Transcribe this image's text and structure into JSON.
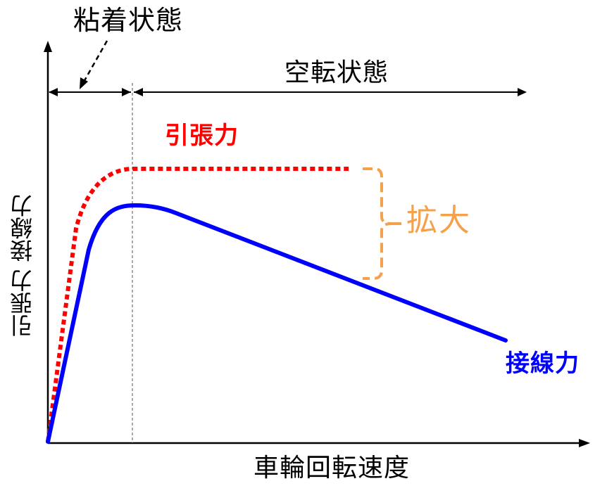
{
  "diagram": {
    "labels": {
      "sticky_state": "粘着状態",
      "slip_state": "空転状態",
      "traction_force": "引張力",
      "expansion": "拡大",
      "tangential_force": "接線力",
      "x_axis": "車輪回転速度",
      "y_axis": "引張力 接線力"
    },
    "colors": {
      "traction_curve": "#ff0000",
      "tangential_curve": "#0000ff",
      "expansion_bracket": "#f5a04a",
      "axes": "#000000"
    }
  }
}
